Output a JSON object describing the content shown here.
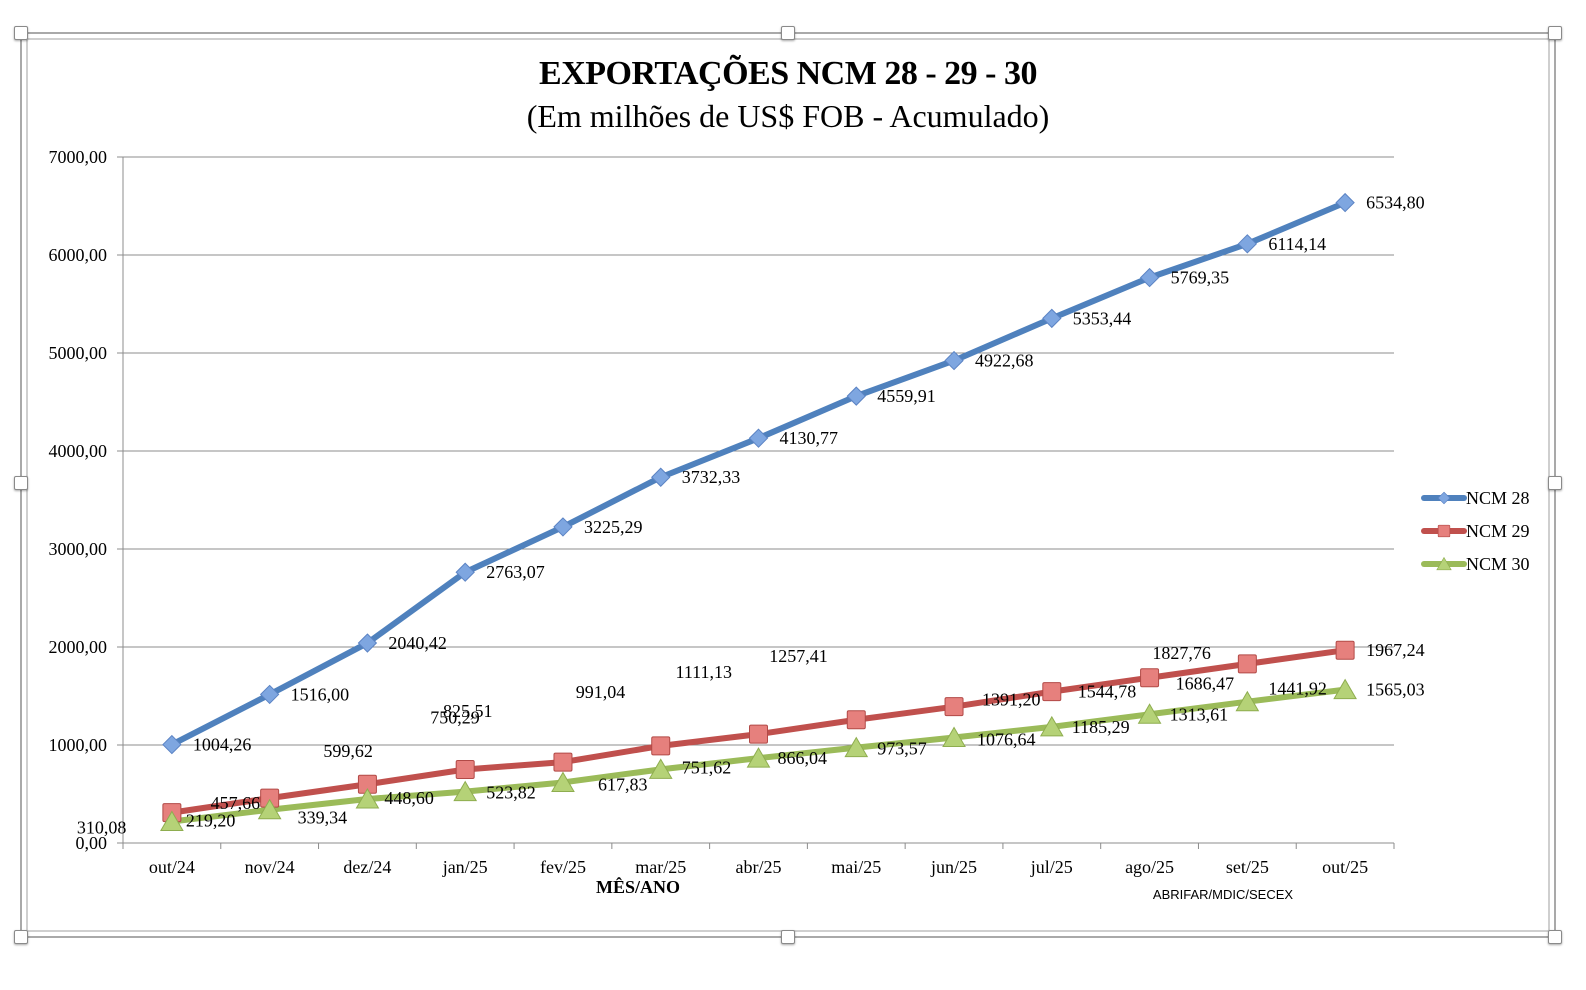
{
  "window": {
    "selection_frame": "chart-object-selected"
  },
  "chart_data": {
    "type": "line",
    "title": "EXPORTAÇÕES NCM 28 - 29 - 30",
    "subtitle": "(Em milhões de US$ FOB - Acumulado)",
    "xlabel": "MÊS/ANO",
    "ylabel": "",
    "source_note": "ABRIFAR/MDIC/SECEX",
    "categories": [
      "out/24",
      "nov/24",
      "dez/24",
      "jan/25",
      "fev/25",
      "mar/25",
      "abr/25",
      "mai/25",
      "jun/25",
      "jul/25",
      "ago/25",
      "set/25",
      "out/25"
    ],
    "ylim": [
      0,
      7000
    ],
    "yticks": [
      0,
      1000,
      2000,
      3000,
      4000,
      5000,
      6000,
      7000
    ],
    "ytick_labels": [
      "0,00",
      "1000,00",
      "2000,00",
      "3000,00",
      "4000,00",
      "5000,00",
      "6000,00",
      "7000,00"
    ],
    "grid": true,
    "legend_position": "right",
    "series": [
      {
        "name": "NCM 28",
        "color": "#4f81bd",
        "marker": "diamond",
        "values": [
          1004.26,
          1516.0,
          2040.42,
          2763.07,
          3225.29,
          3732.33,
          4130.77,
          4559.91,
          4922.68,
          5353.44,
          5769.35,
          6114.14,
          6534.8
        ],
        "labels": [
          "1004,26",
          "1516,00",
          "2040,42",
          "2763,07",
          "3225,29",
          "3732,33",
          "4130,77",
          "4559,91",
          "4922,68",
          "5353,44",
          "5769,35",
          "6114,14",
          "6534,80"
        ]
      },
      {
        "name": "NCM 29",
        "color": "#c0504d",
        "marker": "square",
        "values": [
          310.08,
          457.66,
          599.62,
          750.29,
          825.51,
          991.04,
          1111.13,
          1257.41,
          1391.2,
          1544.78,
          1686.47,
          1827.76,
          1967.24
        ],
        "labels": [
          "310,08",
          "457,66",
          "599,62",
          "750,29",
          "825,51",
          "991,04",
          "1111,13",
          "1257,41",
          "1391,20",
          "1544,78",
          "1686,47",
          "1827,76",
          "1967,24"
        ]
      },
      {
        "name": "NCM 30",
        "color": "#9bbb59",
        "marker": "triangle",
        "values": [
          219.2,
          339.34,
          448.6,
          523.82,
          617.83,
          751.62,
          866.04,
          973.57,
          1076.64,
          1185.29,
          1313.61,
          1441.92,
          1565.03
        ],
        "labels": [
          "219,20",
          "339,34",
          "448,60",
          "523,82",
          "617,83",
          "751,62",
          "866,04",
          "973,57",
          "1076,64",
          "1185,29",
          "1313,61",
          "1441,92",
          "1565,03"
        ]
      }
    ]
  }
}
